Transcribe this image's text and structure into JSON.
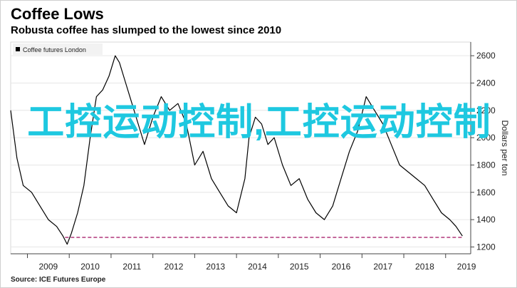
{
  "header": {
    "title": "Coffee Lows",
    "subtitle": "Robusta coffee has slumped to the lowest since 2010"
  },
  "footer": {
    "source": "Source: ICE Futures Europe"
  },
  "overlay": {
    "text": "工控运动控制,工控运动控制"
  },
  "colors": {
    "line": "#000000",
    "reference": "#b0367a",
    "overlay": "#1ec8e0"
  },
  "chart_data": {
    "type": "line",
    "title": "Coffee Lows",
    "subtitle": "Robusta coffee has slumped to the lowest since 2010",
    "legend": {
      "label": "Coffee futures London",
      "placement": "top-left"
    },
    "ylabel": "Dollars per ton",
    "ylim": [
      1150,
      2700
    ],
    "yticks": [
      1200,
      1400,
      1600,
      1800,
      2000,
      2200,
      2400,
      2600
    ],
    "xlim": [
      2008.6,
      2019.6
    ],
    "xtick_labels": [
      "2009",
      "2010",
      "2011",
      "2012",
      "2013",
      "2014",
      "2015",
      "2016",
      "2017",
      "2018",
      "2019"
    ],
    "reference_line": {
      "y": 1270,
      "from": 2009.9,
      "to": 2019.4,
      "style": "dashed"
    },
    "series": [
      {
        "name": "Coffee futures London",
        "x": [
          2008.6,
          2008.75,
          2008.9,
          2009.1,
          2009.3,
          2009.5,
          2009.7,
          2009.85,
          2009.95,
          2010.05,
          2010.2,
          2010.35,
          2010.5,
          2010.65,
          2010.8,
          2010.95,
          2011.1,
          2011.2,
          2011.35,
          2011.5,
          2011.65,
          2011.8,
          2012.0,
          2012.2,
          2012.4,
          2012.6,
          2012.8,
          2013.0,
          2013.2,
          2013.4,
          2013.6,
          2013.8,
          2014.0,
          2014.2,
          2014.3,
          2014.45,
          2014.6,
          2014.75,
          2014.9,
          2015.1,
          2015.3,
          2015.5,
          2015.7,
          2015.9,
          2016.1,
          2016.3,
          2016.5,
          2016.7,
          2016.9,
          2017.1,
          2017.3,
          2017.5,
          2017.7,
          2017.9,
          2018.1,
          2018.3,
          2018.5,
          2018.7,
          2018.9,
          2019.1,
          2019.25,
          2019.4
        ],
        "values": [
          2200,
          1850,
          1650,
          1600,
          1500,
          1400,
          1350,
          1280,
          1220,
          1300,
          1450,
          1650,
          2000,
          2300,
          2350,
          2450,
          2600,
          2550,
          2400,
          2250,
          2100,
          1950,
          2150,
          2300,
          2200,
          2250,
          2100,
          1800,
          1900,
          1700,
          1600,
          1500,
          1450,
          1700,
          2000,
          2150,
          2100,
          1950,
          2000,
          1800,
          1650,
          1700,
          1550,
          1450,
          1400,
          1500,
          1700,
          1900,
          2050,
          2300,
          2200,
          2100,
          1950,
          1800,
          1750,
          1700,
          1650,
          1550,
          1450,
          1400,
          1350,
          1280
        ]
      }
    ]
  }
}
